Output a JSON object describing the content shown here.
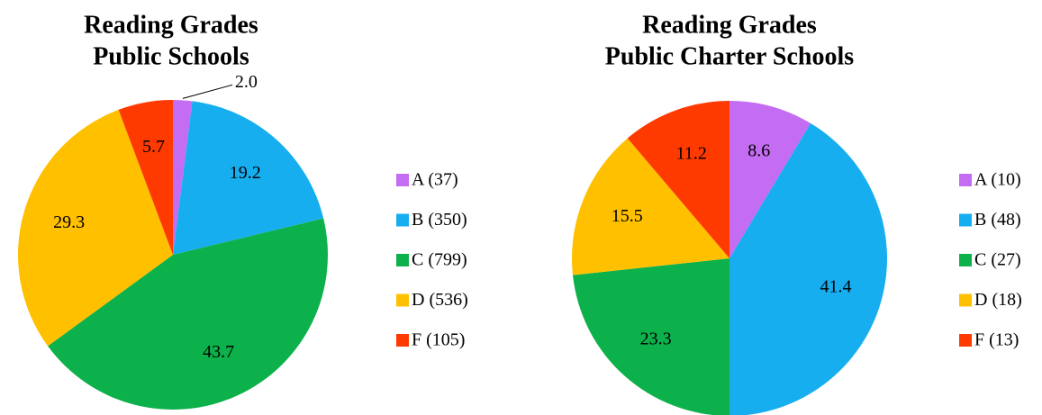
{
  "chart_data": [
    {
      "type": "pie",
      "title": [
        "Reading  Grades",
        "Public Schools"
      ],
      "categories": [
        "A (37)",
        "B (350)",
        "C (799)",
        "D (536)",
        "F (105)"
      ],
      "values": [
        2.0,
        19.2,
        43.7,
        29.3,
        5.7
      ],
      "value_labels": [
        "2.0",
        "19.2",
        "43.7",
        "29.3",
        "5.7"
      ],
      "colors": [
        "#c46cf2",
        "#17aef0",
        "#0db14b",
        "#ffc000",
        "#ff3a00"
      ]
    },
    {
      "type": "pie",
      "title": [
        "Reading Grades",
        "Public Charter Schools"
      ],
      "categories": [
        "A (10)",
        "B (48)",
        "C (27)",
        "D (18)",
        "F (13)"
      ],
      "values": [
        8.6,
        41.4,
        23.3,
        15.5,
        11.2
      ],
      "value_labels": [
        "8.6",
        "41.4",
        "23.3",
        "15.5",
        "11.2"
      ],
      "colors": [
        "#c46cf2",
        "#17aef0",
        "#0db14b",
        "#ffc000",
        "#ff3a00"
      ]
    }
  ]
}
